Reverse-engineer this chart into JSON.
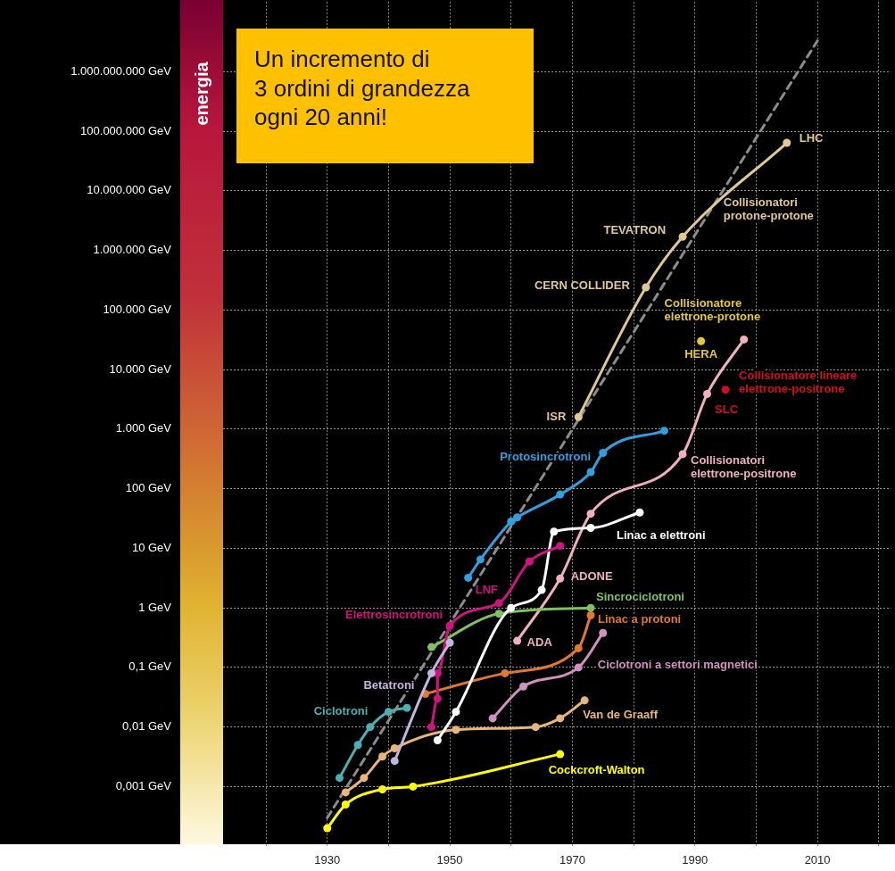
{
  "chart_data": {
    "type": "line",
    "ylabel": "energia",
    "log": "y",
    "grid": true,
    "legend": false,
    "marker": "circle",
    "line_style": "solid",
    "xlim": [
      1913,
      2022
    ],
    "xticks": [
      {
        "value": 1920,
        "label": null
      },
      1930,
      {
        "value": 1940,
        "label": null
      },
      1950,
      {
        "value": 1960,
        "label": null
      },
      1970,
      {
        "value": 1980,
        "label": null
      },
      1990,
      {
        "value": 2000,
        "label": null
      },
      2010,
      {
        "value": 2020,
        "label": null
      }
    ],
    "ylim": [
      0.0001,
      15000000000.0
    ],
    "yticks": [
      {
        "value": 0.001,
        "label": "0,001 GeV"
      },
      {
        "value": 0.01,
        "label": "0,01 GeV"
      },
      {
        "value": 0.1,
        "label": "0,1 GeV"
      },
      {
        "value": 1,
        "label": "1 GeV"
      },
      {
        "value": 10,
        "label": "10 GeV"
      },
      {
        "value": 100,
        "label": "100 GeV"
      },
      {
        "value": 1000,
        "label": "1.000 GeV"
      },
      {
        "value": 10000,
        "label": "10.000 GeV"
      },
      {
        "value": 100000,
        "label": "100.000 GeV"
      },
      {
        "value": 1000000,
        "label": "1.000.000 GeV"
      },
      {
        "value": 10000000,
        "label": "10.000.000 GeV"
      },
      {
        "value": 100000000,
        "label": "100.000.000 GeV"
      },
      {
        "value": 1000000000,
        "label": "1.000.000.000 GeV"
      }
    ],
    "series": [
      {
        "name": "Ciclotroni",
        "color": "#4ab0b4",
        "x": [
          1932,
          1935,
          1937,
          1940,
          1943
        ],
        "values": [
          0.0014,
          0.005,
          0.01,
          0.018,
          0.021
        ]
      },
      {
        "name": "Betatroni",
        "color": "#c4b4e0",
        "x": [
          1941,
          1947,
          1950
        ],
        "values": [
          0.0027,
          0.08,
          0.26
        ]
      },
      {
        "name": "Elettrosincrotroni",
        "color": "#d0147f",
        "x": [
          1947,
          1948,
          1948,
          1950,
          1958,
          1963,
          1968
        ],
        "values": [
          0.01,
          0.03,
          0.08,
          0.5,
          1.2,
          6,
          11
        ]
      },
      {
        "name": "Linac a elettroni",
        "color": "#ffffff",
        "x": [
          1948,
          1951,
          1960,
          1965,
          1967,
          1973,
          1981
        ],
        "values": [
          0.006,
          0.018,
          1,
          2,
          19,
          22,
          40
        ]
      },
      {
        "name": "Sincrociclotroni",
        "color": "#80c060",
        "x": [
          1947,
          1958,
          1973
        ],
        "values": [
          0.22,
          0.8,
          1
        ]
      },
      {
        "name": "Linac a protoni",
        "color": "#e07830",
        "x": [
          1946,
          1959,
          1971,
          1973
        ],
        "values": [
          0.036,
          0.08,
          0.21,
          0.75
        ]
      },
      {
        "name": "Ciclotroni a settori magnetici",
        "color": "#d090c0",
        "x": [
          1957,
          1962,
          1971,
          1975
        ],
        "values": [
          0.014,
          0.048,
          0.1,
          0.38
        ]
      },
      {
        "name": "Van de Graaff",
        "color": "#e8b67a",
        "x": [
          1933,
          1936,
          1939,
          1941,
          1951,
          1964,
          1968,
          1972
        ],
        "values": [
          0.0008,
          0.0014,
          0.0032,
          0.0044,
          0.009,
          0.01,
          0.014,
          0.028
        ]
      },
      {
        "name": "Cockcroft-Walton",
        "color": "#ffff00",
        "x": [
          1930,
          1933,
          1939,
          1944,
          1968
        ],
        "values": [
          0.0002,
          0.0005,
          0.0009,
          0.001,
          0.0035
        ]
      },
      {
        "name": "Protosincrotroni",
        "color": "#30a0e0",
        "x": [
          1953,
          1955,
          1960,
          1961,
          1968,
          1973,
          1975,
          1985
        ],
        "values": [
          3.2,
          6.5,
          28,
          33,
          80,
          190,
          400,
          940
        ]
      },
      {
        "name": "Collisionatori elettrone-positrone",
        "color": "#f0b0c0",
        "x": [
          1961,
          1968,
          1973,
          1988,
          1992,
          1998
        ],
        "values": [
          0.28,
          3.1,
          38,
          380,
          3900,
          32000
        ]
      },
      {
        "name": "Collisionatori protone-protone",
        "color": "#e0c890",
        "x": [
          1971,
          1982,
          1988,
          2005
        ],
        "values": [
          1600,
          240000,
          1700000,
          64000000
        ]
      },
      {
        "name": "Collisionatore elettrone-protone",
        "type": "scatter",
        "color": "#e8c830",
        "x": [
          1991
        ],
        "values": [
          30000
        ]
      },
      {
        "name": "Collisionatore lineare elettrone-positrone",
        "type": "scatter",
        "color": "#d01020",
        "x": [
          1995
        ],
        "values": [
          4600
        ]
      },
      {
        "type": "line",
        "color": "#8c8c8c",
        "line_style": "dashed",
        "marker": "none",
        "x": [
          1930,
          2010
        ],
        "values": [
          0.0003,
          3300000000
        ]
      }
    ],
    "annotations": [
      "Un incremento di\n3 ordini di grandezza\nogni 20 anni!",
      {
        "text": "ISR",
        "x": 1971,
        "y": 1600
      },
      {
        "text": "CERN COLLIDER",
        "x": 1982,
        "y": 240000
      },
      {
        "text": "TEVATRON",
        "x": 1988,
        "y": 1700000
      },
      {
        "text": "LHC",
        "x": 2005,
        "y": 64000000
      },
      {
        "text": "LNF",
        "x": 1958,
        "y": 1.2
      },
      {
        "text": "ADONE",
        "x": 1968,
        "y": 3.1
      },
      {
        "text": "ADA",
        "x": 1961,
        "y": 0.28
      },
      {
        "text": "HERA",
        "x": 1991,
        "y": 30000
      },
      {
        "text": "SLC",
        "x": 1995,
        "y": 4600
      }
    ]
  }
}
